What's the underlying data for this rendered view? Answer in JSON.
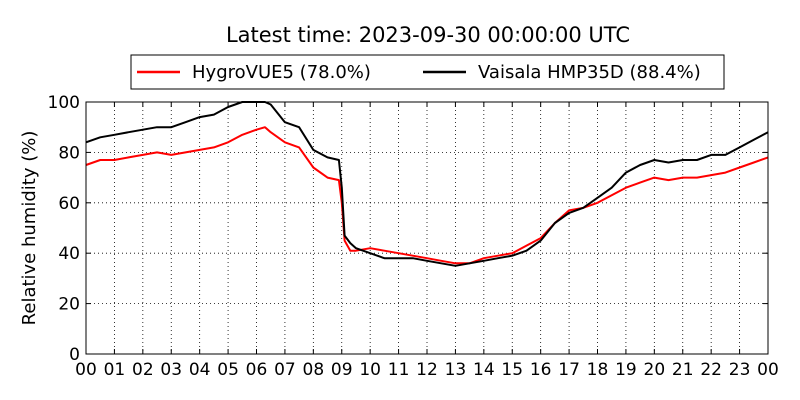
{
  "chart_data": {
    "type": "line",
    "title": "Latest time: 2023-09-30 00:00:00 UTC",
    "ylabel": "Relative humidity (%)",
    "xlabel": "",
    "xlim": [
      0,
      24
    ],
    "ylim": [
      0,
      100
    ],
    "grid": true,
    "legend_position": "top-center",
    "x_ticks": [
      "00",
      "01",
      "02",
      "03",
      "04",
      "05",
      "06",
      "07",
      "08",
      "09",
      "10",
      "11",
      "12",
      "13",
      "14",
      "15",
      "16",
      "17",
      "18",
      "19",
      "20",
      "21",
      "22",
      "23",
      "00"
    ],
    "y_ticks": [
      "0",
      "20",
      "40",
      "60",
      "80",
      "100"
    ],
    "series": [
      {
        "name": "HygroVUE5 (78.0%)",
        "color": "#ff0000",
        "x": [
          0,
          0.5,
          1,
          1.5,
          2,
          2.5,
          3,
          3.5,
          4,
          4.5,
          5,
          5.5,
          6,
          6.3,
          6.5,
          7,
          7.5,
          8,
          8.5,
          8.9,
          9,
          9.1,
          9.3,
          9.5,
          10,
          10.5,
          11,
          11.5,
          12,
          12.5,
          13,
          13.5,
          14,
          14.5,
          15,
          15.5,
          16,
          16.5,
          17,
          17.5,
          18,
          18.5,
          19,
          19.5,
          20,
          20.5,
          21,
          21.5,
          22,
          22.5,
          23,
          23.5,
          24
        ],
        "y": [
          75,
          77,
          77,
          78,
          79,
          80,
          79,
          80,
          81,
          82,
          84,
          87,
          89,
          90,
          88,
          84,
          82,
          74,
          70,
          69,
          60,
          45,
          41,
          41,
          42,
          41,
          40,
          39,
          38,
          37,
          36,
          36,
          38,
          39,
          40,
          43,
          46,
          52,
          57,
          58,
          60,
          63,
          66,
          68,
          70,
          69,
          70,
          70,
          71,
          72,
          74,
          76,
          78
        ]
      },
      {
        "name": "Vaisala HMP35D (88.4%)",
        "color": "#000000",
        "x": [
          0,
          0.5,
          1,
          1.5,
          2,
          2.5,
          3,
          3.5,
          4,
          4.5,
          5,
          5.5,
          6,
          6.3,
          6.5,
          7,
          7.5,
          8,
          8.5,
          8.9,
          9,
          9.1,
          9.3,
          9.5,
          10,
          10.5,
          11,
          11.5,
          12,
          12.5,
          13,
          13.5,
          14,
          14.5,
          15,
          15.5,
          16,
          16.5,
          17,
          17.5,
          18,
          18.5,
          19,
          19.5,
          20,
          20.5,
          21,
          21.5,
          22,
          22.5,
          23,
          23.5,
          24
        ],
        "y": [
          84,
          86,
          87,
          88,
          89,
          90,
          90,
          92,
          94,
          95,
          98,
          100,
          100,
          100,
          99,
          92,
          90,
          81,
          78,
          77,
          66,
          47,
          44,
          42,
          40,
          38,
          38,
          38,
          37,
          36,
          35,
          36,
          37,
          38,
          39,
          41,
          45,
          52,
          56,
          58,
          62,
          66,
          72,
          75,
          77,
          76,
          77,
          77,
          79,
          79,
          82,
          85,
          88
        ]
      }
    ]
  }
}
